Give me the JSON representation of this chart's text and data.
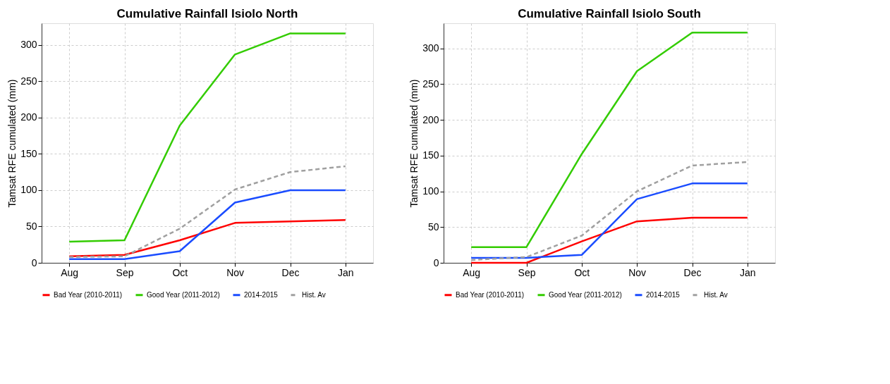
{
  "chart_data": [
    {
      "type": "line",
      "title": "Cumulative Rainfall Isiolo North",
      "ylabel": "Tamsat RFE cumulated (mm)",
      "categories": [
        "Aug",
        "Sep",
        "Oct",
        "Nov",
        "Dec",
        "Jan"
      ],
      "ylim": [
        0,
        330
      ],
      "yticks": [
        0,
        50,
        100,
        150,
        200,
        250,
        300
      ],
      "grid": true,
      "legend": "bottom",
      "marker": "none",
      "series": [
        {
          "name": "Bad Year (2010-2011)",
          "color": "#ff0000",
          "line_style": "solid",
          "values": [
            9,
            11,
            31,
            55,
            57,
            59
          ]
        },
        {
          "name": "Good Year (2011-2012)",
          "color": "#33cc00",
          "line_style": "solid",
          "values": [
            29,
            31,
            189,
            287,
            316,
            316
          ]
        },
        {
          "name": "2014-2015",
          "color": "#1a4cff",
          "line_style": "solid",
          "values": [
            5,
            5,
            16,
            83,
            100,
            100
          ]
        },
        {
          "name": "Hist. Av",
          "color": "#a0a0a0",
          "line_style": "dashed",
          "values": [
            8,
            9,
            47,
            101,
            125,
            133
          ]
        }
      ]
    },
    {
      "type": "line",
      "title": "Cumulative Rainfall Isiolo South",
      "ylabel": "Tamsat RFE cumulated (mm)",
      "categories": [
        "Aug",
        "Sep",
        "Oct",
        "Nov",
        "Dec",
        "Jan"
      ],
      "ylim": [
        0,
        335
      ],
      "yticks": [
        0,
        50,
        100,
        150,
        200,
        250,
        300
      ],
      "grid": true,
      "legend": "bottom",
      "marker": "none",
      "series": [
        {
          "name": "Bad Year (2010-2011)",
          "color": "#ff0000",
          "line_style": "solid",
          "values": [
            0,
            0,
            30,
            58,
            63,
            63
          ]
        },
        {
          "name": "Good Year (2011-2012)",
          "color": "#33cc00",
          "line_style": "solid",
          "values": [
            22,
            22,
            152,
            268,
            322,
            322
          ]
        },
        {
          "name": "2014-2015",
          "color": "#1a4cff",
          "line_style": "solid",
          "values": [
            7,
            7,
            11,
            89,
            111,
            111
          ]
        },
        {
          "name": "Hist. Av",
          "color": "#a0a0a0",
          "line_style": "dashed",
          "values": [
            4,
            8,
            38,
            100,
            136,
            141
          ]
        }
      ]
    }
  ]
}
